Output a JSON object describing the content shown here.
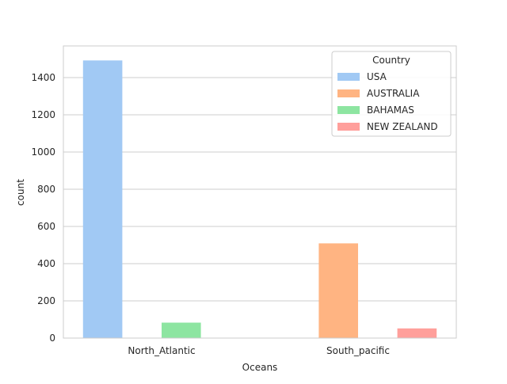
{
  "chart_data": {
    "type": "bar",
    "title": "",
    "xlabel": "Oceans",
    "ylabel": "count",
    "categories": [
      "North_Atlantic",
      "South_pacific"
    ],
    "ylim": [
      0,
      1570
    ],
    "yticks": [
      0,
      200,
      400,
      600,
      800,
      1000,
      1200,
      1400
    ],
    "grid": true,
    "legend": {
      "title": "Country",
      "placement": "top-right"
    },
    "series": [
      {
        "name": "USA",
        "color": "#a1c9f4",
        "values": [
          1492,
          0
        ]
      },
      {
        "name": "AUSTRALIA",
        "color": "#ffb482",
        "values": [
          0,
          509
        ]
      },
      {
        "name": "BAHAMAS",
        "color": "#8de5a1",
        "values": [
          83,
          0
        ]
      },
      {
        "name": "NEW ZEALAND",
        "color": "#ff9f9b",
        "values": [
          0,
          52
        ]
      }
    ]
  }
}
